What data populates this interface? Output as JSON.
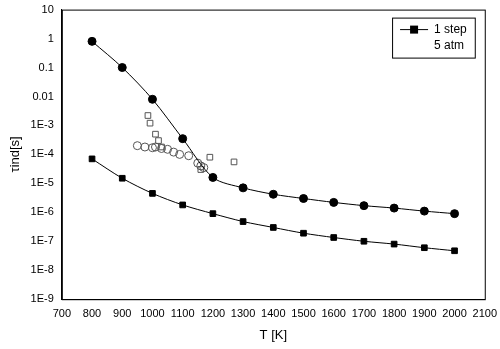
{
  "chart_data": {
    "type": "line",
    "x_label": "T [K]",
    "y_label": "τind[s]",
    "log": "y",
    "grid": false,
    "legend": "upper right",
    "annotations": [
      "5 atm"
    ],
    "xlim": [
      700,
      2100
    ],
    "xticks": [
      700,
      800,
      900,
      1000,
      1100,
      1200,
      1300,
      1400,
      1500,
      1600,
      1700,
      1800,
      1900,
      2000,
      2100
    ],
    "ylim": [
      1e-09,
      10
    ],
    "yticks": [
      {
        "value": 1e-09,
        "label": "1E-9"
      },
      {
        "value": 1e-08,
        "label": "1E-8"
      },
      {
        "value": 1e-07,
        "label": "1E-7"
      },
      {
        "value": 1e-06,
        "label": "1E-6"
      },
      {
        "value": 1e-05,
        "label": "1E-5"
      },
      {
        "value": 0.0001,
        "label": "1E-4"
      },
      {
        "value": 0.001,
        "label": "1E-3"
      },
      0.01,
      0.1,
      1,
      10
    ],
    "series": [
      {
        "type": "line",
        "marker": "circle",
        "line_style": "solid",
        "color": "#000000",
        "x": [
          800,
          900,
          1000,
          1100,
          1200,
          1300,
          1400,
          1500,
          1600,
          1700,
          1800,
          1900,
          2000
        ],
        "values": [
          0.8,
          0.1,
          0.008,
          0.00035,
          1.6e-05,
          7e-06,
          4.2e-06,
          3e-06,
          2.2e-06,
          1.7e-06,
          1.4e-06,
          1.1e-06,
          9e-07
        ]
      },
      {
        "name": "1 step",
        "type": "line",
        "marker": "square",
        "line_style": "solid",
        "color": "#000000",
        "x": [
          800,
          900,
          1000,
          1100,
          1200,
          1300,
          1400,
          1500,
          1600,
          1700,
          1800,
          1900,
          2000
        ],
        "values": [
          7e-05,
          1.5e-05,
          4.5e-06,
          1.8e-06,
          9e-07,
          4.8e-07,
          3e-07,
          1.9e-07,
          1.35e-07,
          1e-07,
          8e-08,
          6e-08,
          4.7e-08
        ]
      },
      {
        "type": "scatter",
        "marker": "square_open",
        "color": "#555555",
        "x": [
          985,
          992,
          1010,
          1020,
          1030,
          1160,
          1190,
          1270
        ],
        "values": [
          0.0022,
          0.0012,
          0.0005,
          0.0003,
          0.00018,
          3e-05,
          8e-05,
          5.5e-05
        ]
      },
      {
        "type": "scatter",
        "marker": "circle_open",
        "color": "#555555",
        "x": [
          950,
          975,
          1000,
          1010,
          1030,
          1050,
          1070,
          1090,
          1120,
          1150,
          1160,
          1170
        ],
        "values": [
          0.0002,
          0.00018,
          0.00017,
          0.00018,
          0.00016,
          0.00015,
          0.00012,
          0.0001,
          9e-05,
          5e-05,
          4e-05,
          3.5e-05
        ]
      }
    ]
  }
}
